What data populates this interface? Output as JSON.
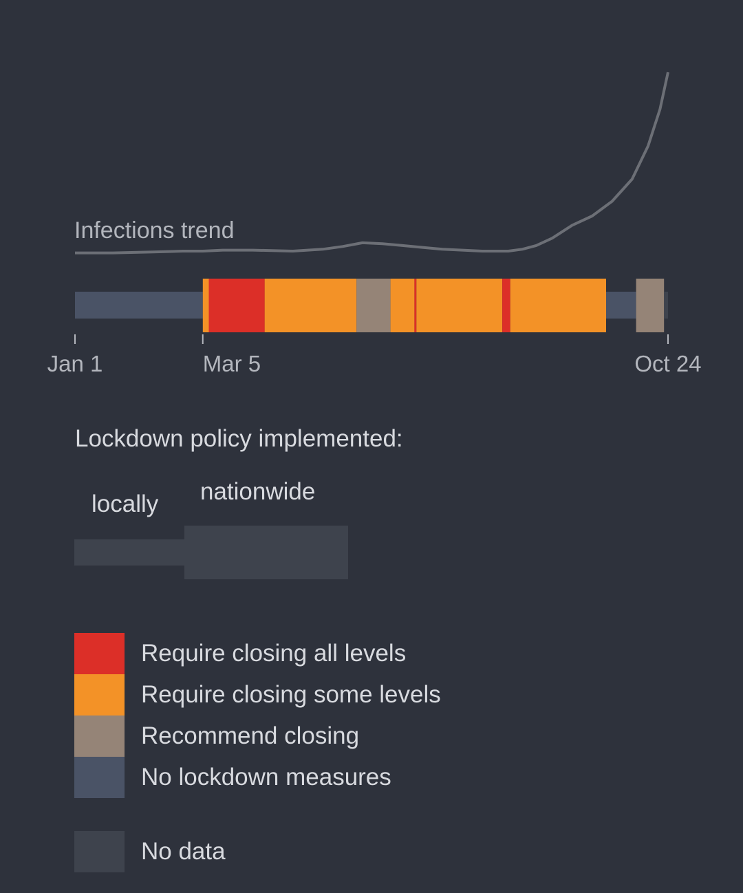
{
  "chart_data": {
    "type": "timeline_with_line",
    "trend_label": "Infections trend",
    "x_ticks": [
      {
        "label": "Jan 1",
        "day": 1
      },
      {
        "label": "Mar 5",
        "day": 65
      },
      {
        "label": "Oct 24",
        "day": 298
      }
    ],
    "x_range_days": [
      1,
      298
    ],
    "trend": [
      [
        1,
        2
      ],
      [
        20,
        2
      ],
      [
        40,
        2.5
      ],
      [
        55,
        3
      ],
      [
        65,
        3
      ],
      [
        75,
        3.5
      ],
      [
        90,
        3.5
      ],
      [
        110,
        3
      ],
      [
        125,
        4
      ],
      [
        135,
        5.5
      ],
      [
        145,
        7.5
      ],
      [
        155,
        7
      ],
      [
        165,
        6
      ],
      [
        175,
        5
      ],
      [
        185,
        4
      ],
      [
        195,
        3.5
      ],
      [
        205,
        3
      ],
      [
        218,
        3
      ],
      [
        225,
        4
      ],
      [
        232,
        6
      ],
      [
        240,
        10
      ],
      [
        250,
        17
      ],
      [
        260,
        22
      ],
      [
        270,
        30
      ],
      [
        280,
        42
      ],
      [
        288,
        60
      ],
      [
        294,
        80
      ],
      [
        298,
        100
      ]
    ],
    "trend_note": "",
    "policy_segments": [
      {
        "start": 1,
        "end": 65,
        "level": "none",
        "scope": "local"
      },
      {
        "start": 65,
        "end": 68,
        "level": "some",
        "scope": "nationwide"
      },
      {
        "start": 68,
        "end": 96,
        "level": "all",
        "scope": "nationwide"
      },
      {
        "start": 96,
        "end": 142,
        "level": "some",
        "scope": "nationwide"
      },
      {
        "start": 142,
        "end": 159,
        "level": "recommend",
        "scope": "nationwide"
      },
      {
        "start": 159,
        "end": 171,
        "level": "some",
        "scope": "nationwide"
      },
      {
        "start": 171,
        "end": 172,
        "level": "all",
        "scope": "nationwide"
      },
      {
        "start": 172,
        "end": 215,
        "level": "some",
        "scope": "nationwide"
      },
      {
        "start": 215,
        "end": 219,
        "level": "all",
        "scope": "nationwide"
      },
      {
        "start": 219,
        "end": 267,
        "level": "some",
        "scope": "nationwide"
      },
      {
        "start": 267,
        "end": 282,
        "level": "none",
        "scope": "local"
      },
      {
        "start": 282,
        "end": 296,
        "level": "recommend",
        "scope": "nationwide"
      },
      {
        "start": 296,
        "end": 298,
        "level": "nodata",
        "scope": "local"
      }
    ]
  },
  "policy_title": "Lockdown policy implemented:",
  "scope_labels": {
    "local": "locally",
    "nationwide": "nationwide"
  },
  "legend": [
    {
      "key": "all",
      "label": "Require closing all levels",
      "color": "#dc2f28"
    },
    {
      "key": "some",
      "label": "Require closing some levels",
      "color": "#f39227"
    },
    {
      "key": "recommend",
      "label": "Recommend closing",
      "color": "#958477"
    },
    {
      "key": "none",
      "label": "No lockdown measures",
      "color": "#4a5366"
    }
  ],
  "legend_nodata": {
    "key": "nodata",
    "label": "No data",
    "color": "#3e434d"
  },
  "colors": {
    "all": "#dc2f28",
    "some": "#f39227",
    "recommend": "#958477",
    "none": "#4a5366",
    "nodata": "#3e434d",
    "trend": "#6c6f76",
    "background": "#2e323c"
  }
}
